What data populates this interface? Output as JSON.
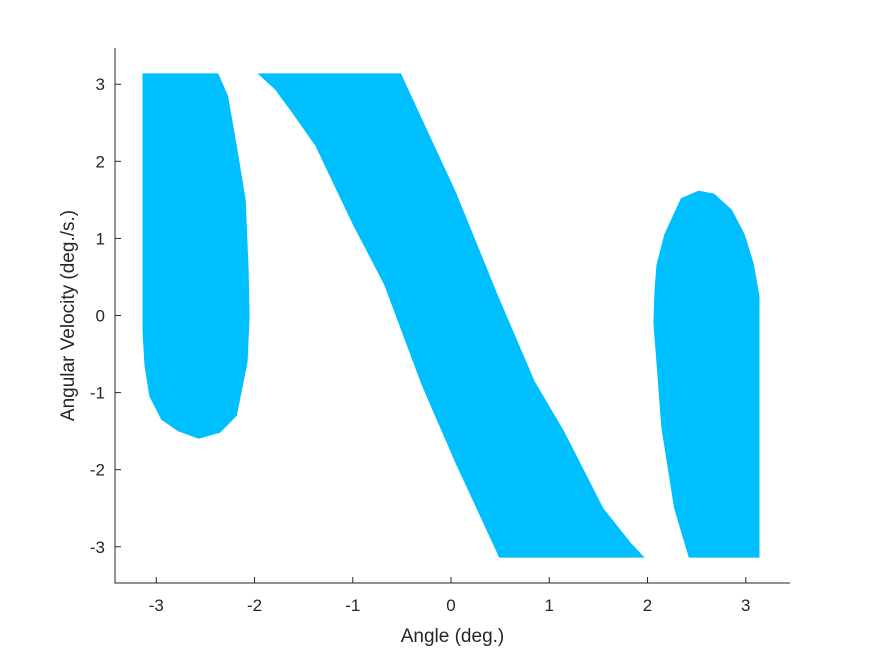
{
  "chart_data": {
    "type": "area",
    "xlabel": "Angle (deg.)",
    "ylabel": "Angular Velocity (deg./s.)",
    "xlim": [
      -3.42,
      3.45
    ],
    "ylim": [
      -3.47,
      3.47
    ],
    "xticks": [
      -3,
      -2,
      -1,
      0,
      1,
      2,
      3
    ],
    "yticks": [
      -3,
      -2,
      -1,
      0,
      1,
      2,
      3
    ],
    "xtick_labels": [
      "-3",
      "-2",
      "-1",
      "0",
      "1",
      "2",
      "3"
    ],
    "ytick_labels": [
      "-3",
      "-2",
      "-1",
      "0",
      "1",
      "2",
      "3"
    ],
    "grid": false,
    "fill_color": "#00BFFF",
    "regions": [
      {
        "points": [
          [
            -3.14,
            3.14
          ],
          [
            -2.37,
            3.14
          ],
          [
            -2.27,
            2.85
          ],
          [
            -2.18,
            2.2
          ],
          [
            -2.09,
            1.5
          ],
          [
            -2.06,
            0.6
          ],
          [
            -2.05,
            0.0
          ],
          [
            -2.07,
            -0.6
          ],
          [
            -2.18,
            -1.3
          ],
          [
            -2.35,
            -1.52
          ],
          [
            -2.57,
            -1.6
          ],
          [
            -2.78,
            -1.5
          ],
          [
            -2.95,
            -1.35
          ],
          [
            -3.07,
            -1.05
          ],
          [
            -3.12,
            -0.65
          ],
          [
            -3.14,
            -0.2
          ]
        ]
      },
      {
        "points": [
          [
            -1.97,
            3.14
          ],
          [
            -0.51,
            3.14
          ],
          [
            0.05,
            1.6
          ],
          [
            0.48,
            0.25
          ],
          [
            0.85,
            -0.85
          ],
          [
            1.15,
            -1.5
          ],
          [
            1.55,
            -2.5
          ],
          [
            1.83,
            -2.95
          ],
          [
            1.97,
            -3.14
          ],
          [
            0.49,
            -3.14
          ],
          [
            0.04,
            -1.9
          ],
          [
            -0.3,
            -0.9
          ],
          [
            -0.68,
            0.4
          ],
          [
            -1.0,
            1.18
          ],
          [
            -1.38,
            2.2
          ],
          [
            -1.6,
            2.6
          ],
          [
            -1.79,
            2.93
          ]
        ]
      },
      {
        "points": [
          [
            2.07,
            0.3
          ],
          [
            2.09,
            0.65
          ],
          [
            2.17,
            1.05
          ],
          [
            2.34,
            1.52
          ],
          [
            2.52,
            1.62
          ],
          [
            2.68,
            1.58
          ],
          [
            2.86,
            1.37
          ],
          [
            2.99,
            1.05
          ],
          [
            3.08,
            0.68
          ],
          [
            3.14,
            0.25
          ],
          [
            3.14,
            -3.14
          ],
          [
            2.42,
            -3.14
          ],
          [
            2.27,
            -2.5
          ],
          [
            2.14,
            -1.45
          ],
          [
            2.09,
            -0.6
          ],
          [
            2.06,
            -0.1
          ]
        ]
      }
    ]
  }
}
